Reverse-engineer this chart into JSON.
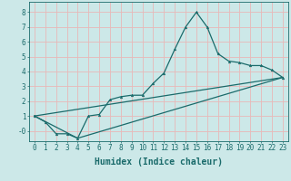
{
  "xlabel": "Humidex (Indice chaleur)",
  "ylabel": "",
  "background_color": "#cce8e8",
  "grid_color": "#e8b8b8",
  "line_color": "#1a6b6b",
  "xlim": [
    -0.5,
    23.5
  ],
  "ylim": [
    -0.7,
    8.7
  ],
  "xticks": [
    0,
    1,
    2,
    3,
    4,
    5,
    6,
    7,
    8,
    9,
    10,
    11,
    12,
    13,
    14,
    15,
    16,
    17,
    18,
    19,
    20,
    21,
    22,
    23
  ],
  "yticks": [
    0,
    1,
    2,
    3,
    4,
    5,
    6,
    7,
    8
  ],
  "ytick_labels": [
    "-0",
    "1",
    "2",
    "3",
    "4",
    "5",
    "6",
    "7",
    "8"
  ],
  "series1_x": [
    0,
    1,
    2,
    3,
    4,
    5,
    6,
    7,
    8,
    9,
    10,
    11,
    12,
    13,
    14,
    15,
    16,
    17,
    18,
    19,
    20,
    21,
    22,
    23
  ],
  "series1_y": [
    1.0,
    0.6,
    -0.2,
    -0.2,
    -0.5,
    1.0,
    1.1,
    2.1,
    2.3,
    2.4,
    2.4,
    3.2,
    3.9,
    5.5,
    7.0,
    8.0,
    7.0,
    5.2,
    4.7,
    4.6,
    4.4,
    4.4,
    4.1,
    3.6
  ],
  "series2_x": [
    0,
    23
  ],
  "series2_y": [
    1.0,
    3.6
  ],
  "series3_x": [
    0,
    4,
    23
  ],
  "series3_y": [
    1.0,
    -0.5,
    3.6
  ],
  "font_family": "monospace",
  "tick_fontsize": 5.5,
  "label_fontsize": 7.0
}
